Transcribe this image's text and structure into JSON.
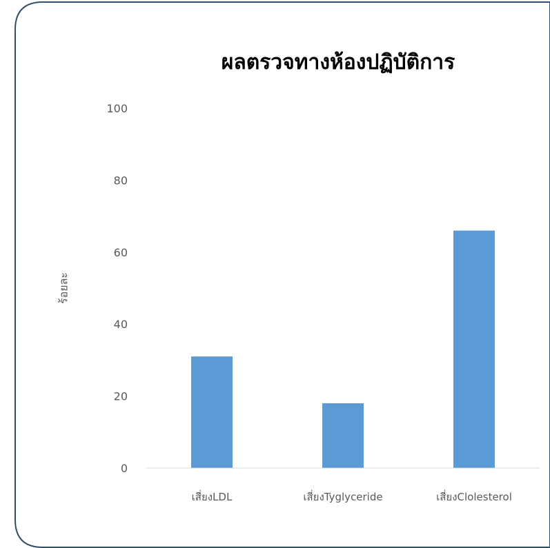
{
  "chart_data": {
    "type": "bar",
    "title": "ผลตรวจทางห้องปฏิบัติการ",
    "ylabel": "ร้อยละ",
    "xlabel": "",
    "categories": [
      "เสี่ยงLDL",
      "เสี่ยงTyglyceride",
      "เสี่ยงClolesterol"
    ],
    "values": [
      31,
      18,
      66
    ],
    "ylim": [
      0,
      100
    ],
    "yticks": [
      "0",
      "20",
      "40",
      "60",
      "80",
      "100"
    ],
    "grid": false,
    "legend": "none",
    "colors": {
      "bar": "#5b9bd5",
      "border": "#2f4f6f",
      "axis": "#d9d9d9"
    }
  }
}
